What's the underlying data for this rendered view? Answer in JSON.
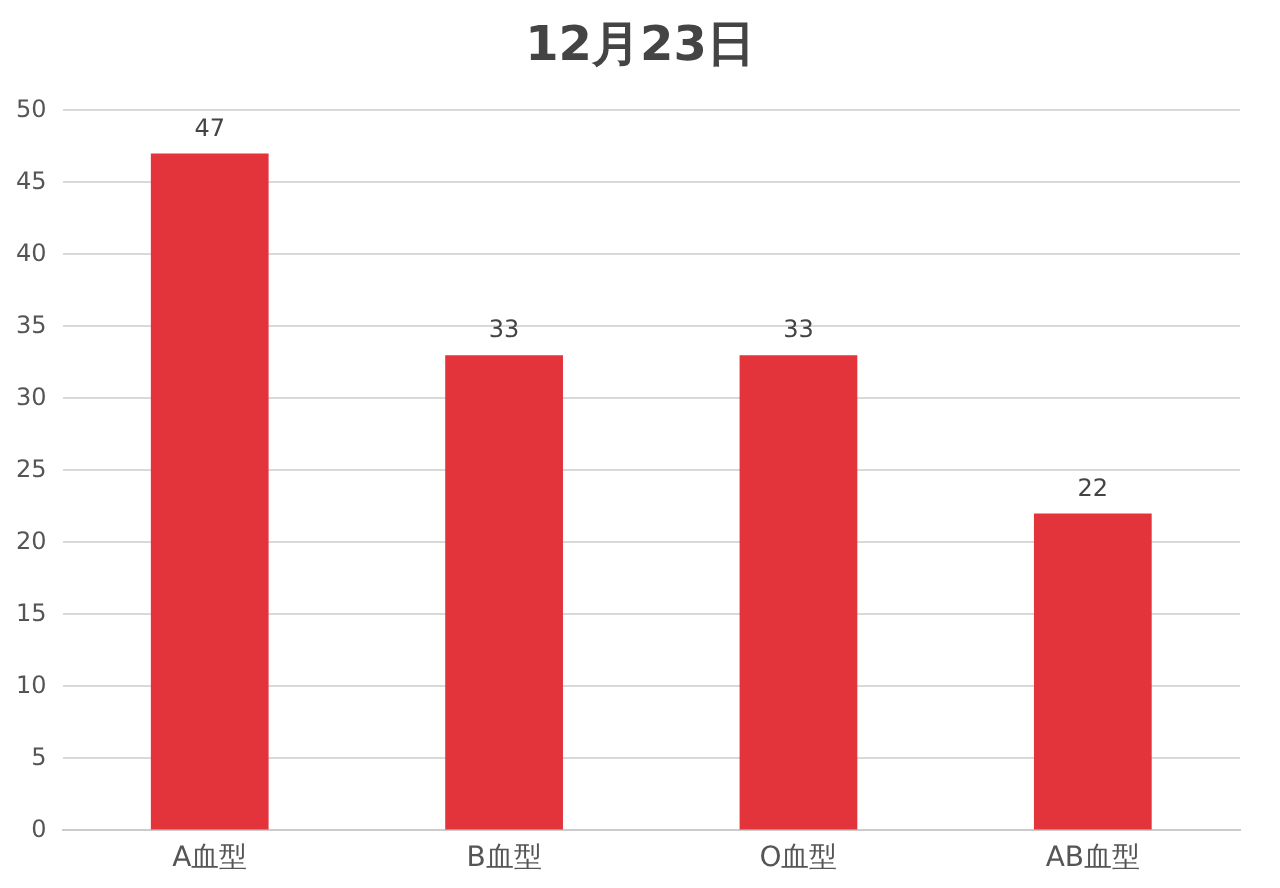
{
  "chart_data": {
    "type": "bar",
    "title": "12月23日",
    "categories": [
      "A血型",
      "B血型",
      "O血型",
      "AB血型"
    ],
    "values": [
      47,
      33,
      33,
      22
    ],
    "color": "#e3333b",
    "ylim": [
      0,
      50
    ],
    "yticks": [
      0,
      5,
      10,
      15,
      20,
      25,
      30,
      35,
      40,
      45,
      50
    ],
    "grid": "y",
    "data_labels": true,
    "legend": false
  }
}
